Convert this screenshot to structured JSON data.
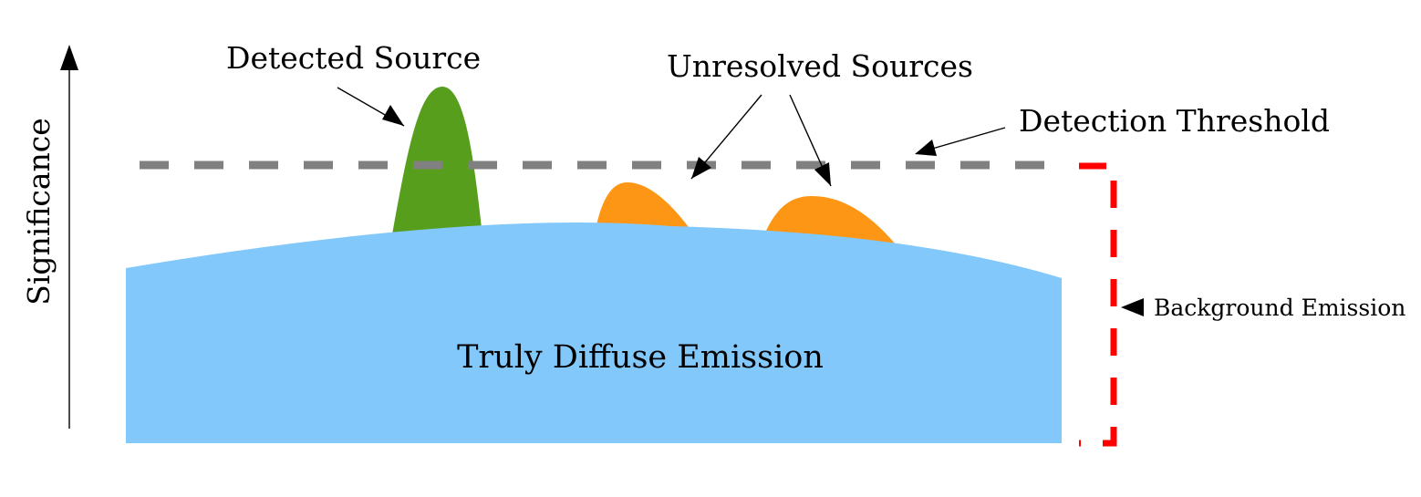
{
  "diagram": {
    "y_axis_label": "Significance",
    "labels": {
      "detected_source": "Detected Source",
      "unresolved_sources": "Unresolved Sources",
      "detection_threshold": "Detection Threshold",
      "background_emission": "Background Emission",
      "diffuse_emission": "Truly Diffuse Emission"
    },
    "colors": {
      "diffuse": "#83c8fb",
      "detected_source": "#579e1c",
      "unresolved_sources": "#fd9614",
      "threshold_line": "#808080",
      "background_bracket": "#ff0000",
      "axis": "#000000"
    }
  }
}
